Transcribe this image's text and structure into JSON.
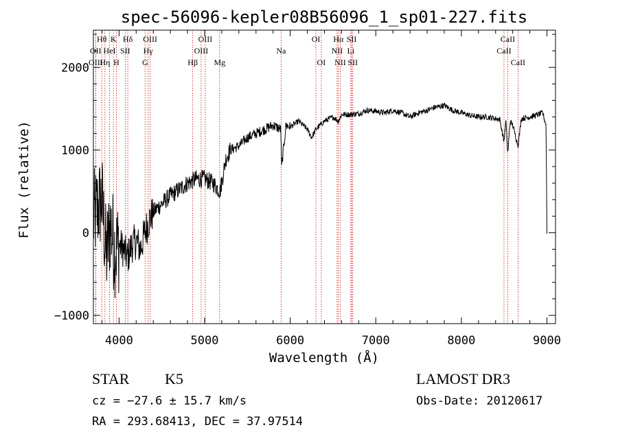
{
  "chart_data": {
    "type": "line",
    "title": "spec-56096-kepler08B56096_1_sp01-227.fits",
    "xlabel": "Wavelength (Å)",
    "ylabel": "Flux (relative)",
    "xlim": [
      3700,
      9100
    ],
    "ylim": [
      -1100,
      2450
    ],
    "xticks": [
      {
        "value": 4000,
        "label": "4000"
      },
      {
        "value": 5000,
        "label": "5000"
      },
      {
        "value": 6000,
        "label": "6000"
      },
      {
        "value": 7000,
        "label": "7000"
      },
      {
        "value": 8000,
        "label": "8000"
      },
      {
        "value": 9000,
        "label": "9000"
      }
    ],
    "yticks": [
      {
        "value": -1000,
        "label": "−1000"
      },
      {
        "value": 0,
        "label": "0"
      },
      {
        "value": 1000,
        "label": "1000"
      },
      {
        "value": 2000,
        "label": "2000"
      }
    ],
    "series": [
      {
        "name": "flux",
        "x": [
          3700,
          3750,
          3800,
          3850,
          3900,
          3950,
          4000,
          4050,
          4100,
          4150,
          4200,
          4250,
          4300,
          4350,
          4400,
          4450,
          4500,
          4600,
          4700,
          4800,
          4900,
          5000,
          5100,
          5180,
          5250,
          5300,
          5400,
          5500,
          5600,
          5700,
          5800,
          5890,
          5900,
          5950,
          6000,
          6100,
          6200,
          6250,
          6300,
          6400,
          6500,
          6563,
          6600,
          6700,
          6800,
          6900,
          7000,
          7100,
          7200,
          7300,
          7400,
          7500,
          7600,
          7700,
          7800,
          7900,
          8000,
          8100,
          8200,
          8300,
          8400,
          8450,
          8498,
          8520,
          8542,
          8570,
          8600,
          8662,
          8700,
          8800,
          8900,
          8950,
          8990,
          9000
        ],
        "y": [
          150,
          300,
          400,
          -300,
          100,
          -200,
          -150,
          -200,
          -300,
          -150,
          -100,
          -200,
          0,
          150,
          250,
          300,
          350,
          450,
          520,
          600,
          650,
          650,
          600,
          500,
          900,
          1000,
          1050,
          1150,
          1200,
          1250,
          1300,
          1250,
          800,
          1300,
          1280,
          1350,
          1250,
          1150,
          1250,
          1350,
          1400,
          1350,
          1430,
          1430,
          1440,
          1480,
          1470,
          1450,
          1480,
          1450,
          1400,
          1450,
          1480,
          1520,
          1540,
          1480,
          1450,
          1420,
          1400,
          1400,
          1380,
          1370,
          1100,
          1350,
          950,
          1350,
          1300,
          1050,
          1380,
          1400,
          1430,
          1450,
          1300,
          0
        ]
      }
    ],
    "emission_lines": [
      {
        "label": "Hθ",
        "wavelength": 3798,
        "row": 0
      },
      {
        "label": "OII",
        "wavelength": 3727,
        "row": 1
      },
      {
        "label": "OIII",
        "wavelength": 3727,
        "row": 2
      },
      {
        "label": "Hη",
        "wavelength": 3835,
        "row": 2
      },
      {
        "label": "HeI",
        "wavelength": 3889,
        "row": 1
      },
      {
        "label": "K",
        "wavelength": 3934,
        "row": 0
      },
      {
        "label": "H",
        "wavelength": 3968,
        "row": 2
      },
      {
        "label": "SII",
        "wavelength": 4072,
        "row": 1
      },
      {
        "label": "Hδ",
        "wavelength": 4102,
        "row": 0
      },
      {
        "label": "OIII",
        "wavelength": 4363,
        "row": 0
      },
      {
        "label": "Hγ",
        "wavelength": 4340,
        "row": 1
      },
      {
        "label": "G",
        "wavelength": 4304,
        "row": 2
      },
      {
        "label": "OIII",
        "wavelength": 4959,
        "row": 1
      },
      {
        "label": "OIII",
        "wavelength": 5007,
        "row": 0
      },
      {
        "label": "Hβ",
        "wavelength": 4861,
        "row": 2
      },
      {
        "label": "Mg",
        "wavelength": 5175,
        "row": 2
      },
      {
        "label": "Na",
        "wavelength": 5893,
        "row": 1
      },
      {
        "label": "OI",
        "wavelength": 6300,
        "row": 0
      },
      {
        "label": "OI",
        "wavelength": 6363,
        "row": 2
      },
      {
        "label": "Hα",
        "wavelength": 6563,
        "row": 0
      },
      {
        "label": "NII",
        "wavelength": 6548,
        "row": 1
      },
      {
        "label": "NII",
        "wavelength": 6584,
        "row": 2
      },
      {
        "label": "SII",
        "wavelength": 6717,
        "row": 0
      },
      {
        "label": "Li",
        "wavelength": 6708,
        "row": 1
      },
      {
        "label": "SII",
        "wavelength": 6731,
        "row": 2
      },
      {
        "label": "CaII",
        "wavelength": 8542,
        "row": 0
      },
      {
        "label": "CaII",
        "wavelength": 8498,
        "row": 1
      },
      {
        "label": "CaII",
        "wavelength": 8662,
        "row": 2
      }
    ]
  },
  "info": {
    "object_class": "STAR",
    "subclass": "K5",
    "survey": "LAMOST DR3",
    "cz": "cz = −27.6 ± 15.7 km/s",
    "obs_date": "Obs-Date: 20120617",
    "coords": "RA = 293.68413, DEC =  37.97514"
  },
  "colors": {
    "line": "#000000",
    "emission_line": "#cc0000",
    "axis": "#000000"
  }
}
